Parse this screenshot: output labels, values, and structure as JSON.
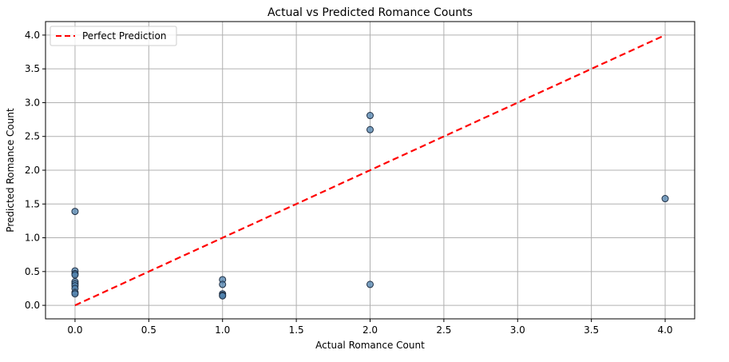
{
  "chart_data": {
    "type": "scatter",
    "title": "Actual vs Predicted Romance Counts",
    "xlabel": "Actual Romance Count",
    "ylabel": "Predicted Romance Count",
    "xlim": [
      -0.2,
      4.2
    ],
    "ylim": [
      -0.2,
      4.2
    ],
    "x_ticks": [
      0.0,
      0.5,
      1.0,
      1.5,
      2.0,
      2.5,
      3.0,
      3.5,
      4.0
    ],
    "y_ticks": [
      0.0,
      0.5,
      1.0,
      1.5,
      2.0,
      2.5,
      3.0,
      3.5,
      4.0
    ],
    "x_tick_labels": [
      "0.0",
      "0.5",
      "1.0",
      "1.5",
      "2.0",
      "2.5",
      "3.0",
      "3.5",
      "4.0"
    ],
    "y_tick_labels": [
      "0.0",
      "0.5",
      "1.0",
      "1.5",
      "2.0",
      "2.5",
      "3.0",
      "3.5",
      "4.0"
    ],
    "grid": true,
    "legend_position": "top-left",
    "legend": [
      "Perfect Prediction"
    ],
    "points": [
      {
        "x": 0,
        "y": 1.39
      },
      {
        "x": 0,
        "y": 0.51
      },
      {
        "x": 0,
        "y": 0.47
      },
      {
        "x": 0,
        "y": 0.45
      },
      {
        "x": 0,
        "y": 0.35
      },
      {
        "x": 0,
        "y": 0.32
      },
      {
        "x": 0,
        "y": 0.29
      },
      {
        "x": 0,
        "y": 0.25
      },
      {
        "x": 0,
        "y": 0.19
      },
      {
        "x": 0,
        "y": 0.17
      },
      {
        "x": 1,
        "y": 0.38
      },
      {
        "x": 1,
        "y": 0.31
      },
      {
        "x": 1,
        "y": 0.17
      },
      {
        "x": 1,
        "y": 0.15
      },
      {
        "x": 1,
        "y": 0.14
      },
      {
        "x": 2,
        "y": 2.81
      },
      {
        "x": 2,
        "y": 2.6
      },
      {
        "x": 2,
        "y": 0.31
      },
      {
        "x": 4,
        "y": 1.58
      }
    ],
    "reference_line": {
      "name": "Perfect Prediction",
      "x": [
        0,
        4
      ],
      "y": [
        0,
        4
      ]
    },
    "colors": {
      "point_fill": "#4f81ad",
      "point_stroke": "#1f2f44",
      "reference_line": "#ff0000",
      "grid": "#b0b0b0"
    }
  }
}
